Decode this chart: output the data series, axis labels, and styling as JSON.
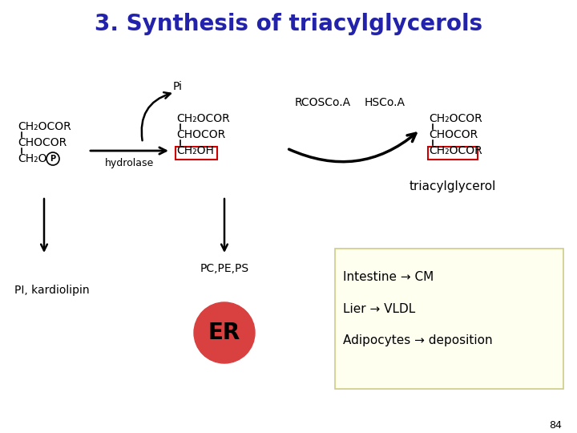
{
  "title": "3. Synthesis of triacylglycerols",
  "title_color": "#2222aa",
  "title_fontsize": 20,
  "bg_color": "#ffffff",
  "left_mol": [
    "CH₂OCOR",
    "CHOCOR",
    "CH₂O"
  ],
  "mid_mol": [
    "CH₂OCOR",
    "CHOCOR",
    "CH₂OH"
  ],
  "right_mol": [
    "CH₂OCOR",
    "CHOCOR",
    "CH₂OCOR"
  ],
  "pi_label": "Pi",
  "hydrolase_label": "hydrolase",
  "rcoscoa_label": "RCOSCo.A",
  "hscoa_label": "HSCo.A",
  "triacylglycerol_label": "triacylglycerol",
  "pc_pe_ps_label": "PC,PE,PS",
  "pi_kardiolipin_label": "PI, kardiolipin",
  "er_label": "ER",
  "box_lines": [
    "Intestine → CM",
    "Lier → VLDL",
    "Adipocytes → deposition"
  ],
  "page_num": "84",
  "er_color": "#d94040",
  "box_bg_color": "#fffff0",
  "box_border_color": "#cccc88",
  "red_box_color": "#cc0000",
  "arrow_color": "#000000"
}
